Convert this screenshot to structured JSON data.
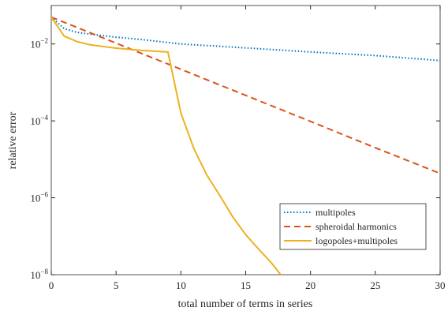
{
  "chart_data": {
    "type": "line",
    "xlabel": "total number of terms in series",
    "ylabel": "relative error",
    "xlim": [
      0,
      30
    ],
    "xticks": [
      0,
      5,
      10,
      15,
      20,
      25,
      30
    ],
    "ylim": [
      1e-08,
      0.1
    ],
    "log_y": true,
    "yticks": [
      {
        "value": 1e-08,
        "label": "10−8"
      },
      {
        "value": 1e-06,
        "label": "10−6"
      },
      {
        "value": 0.0001,
        "label": "10−4"
      },
      {
        "value": 0.01,
        "label": "10−2"
      }
    ],
    "legend": "lower right",
    "series": [
      {
        "name": "multipoles",
        "color": "#0072bd",
        "style": "dotted",
        "x": [
          0,
          1,
          2,
          3,
          5,
          7,
          10,
          15,
          20,
          25,
          30
        ],
        "values": [
          0.05,
          0.025,
          0.02,
          0.018,
          0.015,
          0.013,
          0.01,
          0.0079,
          0.0062,
          0.005,
          0.0037
        ]
      },
      {
        "name": "spheroidal harmonics",
        "color": "#d95319",
        "style": "dashed",
        "x": [
          0,
          5,
          10,
          15,
          20,
          25,
          30
        ],
        "values": [
          0.05,
          0.0105,
          0.0022,
          0.00046,
          9.7e-05,
          2e-05,
          4.3e-06
        ]
      },
      {
        "name": "logopoles+multipoles",
        "color": "#edb120",
        "style": "solid",
        "x": [
          0,
          1,
          2,
          3,
          5,
          7,
          9,
          10,
          11,
          12,
          13,
          14,
          15,
          16,
          17,
          17.7
        ],
        "values": [
          0.05,
          0.016,
          0.0115,
          0.0095,
          0.0078,
          0.0068,
          0.0062,
          0.00016,
          1.9e-05,
          3.9e-06,
          1.15e-06,
          3.2e-07,
          1.1e-07,
          4.6e-08,
          2e-08,
          1e-08
        ]
      }
    ]
  }
}
